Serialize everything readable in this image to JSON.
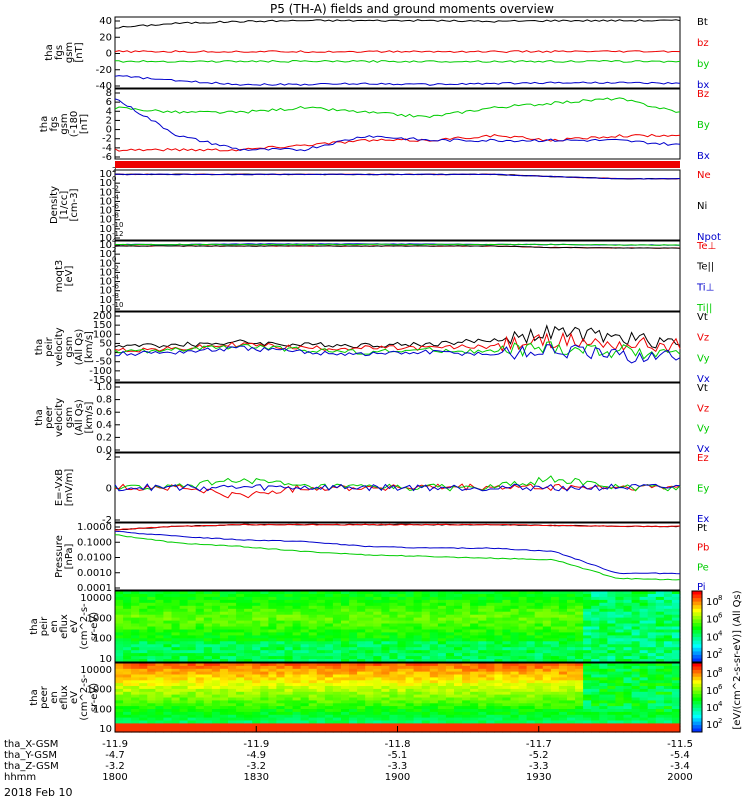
{
  "title": "P5 (TH-A) fields and ground moments overview",
  "date": "2018 Feb 10",
  "colors": {
    "black": "#000000",
    "red": "#ee0000",
    "green": "#00cc00",
    "blue": "#0000cc"
  },
  "chart_data": [
    {
      "type": "line",
      "ylabel": [
        "tha",
        "fgs",
        "gsm",
        "[nT]"
      ],
      "ticks": [
        "40",
        "20",
        "0",
        "-20",
        "-40"
      ],
      "ylim": [
        -40,
        40
      ],
      "series": [
        {
          "name": "Bt",
          "color": "black",
          "values": [
            28,
            33,
            35,
            36,
            36,
            36,
            35,
            36,
            36,
            36
          ]
        },
        {
          "name": "bz",
          "color": "red",
          "values": [
            1,
            1,
            1,
            1,
            1,
            1,
            1,
            1,
            1,
            1
          ]
        },
        {
          "name": "by",
          "color": "green",
          "values": [
            -10,
            -10,
            -10,
            -10,
            -10,
            -10,
            -10,
            -10,
            -10,
            -10
          ]
        },
        {
          "name": "bx",
          "color": "blue",
          "values": [
            -26,
            -32,
            -36,
            -36,
            -35,
            -36,
            -35,
            -34,
            -34,
            -35
          ]
        }
      ]
    },
    {
      "type": "line",
      "ylabel": [
        "tha",
        "fgs",
        "gsm",
        "(-180",
        "[nT]"
      ],
      "ticks": [
        "8",
        "6",
        "4",
        "2",
        "0",
        "-2",
        "-4",
        "-6"
      ],
      "ylim": [
        -7,
        8
      ],
      "series": [
        {
          "name": "Bz",
          "color": "red",
          "values": [
            -5,
            -5,
            -5,
            -4,
            -3,
            -3,
            -2,
            -3,
            -2,
            -2
          ]
        },
        {
          "name": "By",
          "color": "green",
          "values": [
            4,
            3,
            3,
            4,
            3,
            2,
            4,
            5,
            6,
            3
          ]
        },
        {
          "name": "Bx",
          "color": "blue",
          "values": [
            6,
            -2,
            -5,
            -5,
            -2,
            -3,
            -3,
            -3,
            -3,
            -4
          ]
        }
      ]
    },
    {
      "type": "line",
      "ylabel": [
        "Density",
        "[1/cc]",
        "[cm-3]"
      ],
      "ticks": [
        "10",
        "10",
        "10",
        "10",
        "10",
        "10",
        "10",
        "10"
      ],
      "ylim": [
        -14,
        2
      ],
      "series": [
        {
          "name": "Ne",
          "color": "red",
          "values": [
            1,
            1,
            1,
            1,
            1,
            1,
            1,
            0.5,
            0,
            0
          ]
        },
        {
          "name": "Ni",
          "color": "black",
          "values": [
            1,
            1,
            1,
            1,
            1,
            1,
            1,
            0.5,
            0,
            0
          ]
        },
        {
          "name": "Npot",
          "color": "blue",
          "values": [
            1,
            1,
            1,
            1,
            1,
            1,
            1,
            0.5,
            0,
            0
          ]
        }
      ]
    },
    {
      "type": "line",
      "ylabel": [
        "moqt3",
        "[eV]"
      ],
      "ticks": [
        "10",
        "10",
        "10",
        "10",
        "10",
        "10",
        "10",
        "10"
      ],
      "ylim": [
        -10,
        4
      ],
      "series": [
        {
          "name": "Te⊥",
          "color": "red",
          "values": [
            3,
            3,
            3,
            3,
            3,
            3,
            3,
            2.7,
            2.6,
            2.6
          ]
        },
        {
          "name": "Te||",
          "color": "black",
          "values": [
            3,
            3,
            3,
            3,
            3,
            3,
            3,
            2.7,
            2.6,
            2.6
          ]
        },
        {
          "name": "Ti⊥",
          "color": "blue",
          "values": [
            3.3,
            3.3,
            3.4,
            3.4,
            3.4,
            3.4,
            3.3,
            3.3,
            3.2,
            3.2
          ]
        },
        {
          "name": "Ti||",
          "color": "green",
          "values": [
            3.3,
            3.3,
            3.3,
            3.3,
            3.3,
            3.3,
            3.3,
            3.3,
            3.2,
            3.2
          ]
        }
      ]
    },
    {
      "type": "line",
      "ylabel": [
        "tha",
        "peir",
        "velocity",
        "gsm",
        "(All Qs)",
        "[km/s]"
      ],
      "ticks": [
        "200",
        "150",
        "100",
        "50",
        "0",
        "-50",
        "-100",
        "-150"
      ],
      "ylim": [
        -150,
        200
      ],
      "series": [
        {
          "name": "Vt",
          "color": "black",
          "values": [
            30,
            35,
            50,
            35,
            35,
            40,
            60,
            100,
            70,
            50
          ]
        },
        {
          "name": "Vz",
          "color": "red",
          "values": [
            10,
            15,
            40,
            20,
            20,
            20,
            30,
            60,
            40,
            30
          ]
        },
        {
          "name": "Vy",
          "color": "green",
          "values": [
            0,
            10,
            30,
            10,
            0,
            10,
            0,
            20,
            0,
            0
          ]
        },
        {
          "name": "Vx",
          "color": "blue",
          "values": [
            -10,
            0,
            20,
            0,
            -10,
            0,
            -10,
            10,
            -20,
            -20
          ]
        }
      ]
    },
    {
      "type": "line",
      "ylabel": [
        "tha",
        "peer",
        "velocity",
        "gsm",
        "(All Qs)",
        "[km/s]"
      ],
      "ticks": [
        "1.0",
        "0.8",
        "0.6",
        "0.4",
        "0.2",
        "0.0"
      ],
      "ylim": [
        0,
        1
      ],
      "series": [
        {
          "name": "Vt",
          "color": "black",
          "values": []
        },
        {
          "name": "Vz",
          "color": "red",
          "values": []
        },
        {
          "name": "Vy",
          "color": "green",
          "values": []
        },
        {
          "name": "Vx",
          "color": "blue",
          "values": []
        }
      ]
    },
    {
      "type": "line",
      "ylabel": [
        "E=-VxB",
        "[mV/m]"
      ],
      "ticks": [
        "2",
        "0",
        "-2"
      ],
      "ylim": [
        -4,
        4
      ],
      "series": [
        {
          "name": "Ez",
          "color": "red",
          "values": [
            0,
            0,
            -1,
            0,
            0,
            0,
            0,
            0,
            0,
            0
          ]
        },
        {
          "name": "Ey",
          "color": "green",
          "values": [
            0,
            0,
            1,
            0,
            0,
            0,
            0,
            1,
            0,
            0
          ]
        },
        {
          "name": "Ex",
          "color": "blue",
          "values": [
            0,
            0,
            0,
            0,
            0,
            0,
            0,
            0,
            0,
            0
          ]
        }
      ]
    },
    {
      "type": "line",
      "ylabel": [
        "Pressure",
        "[nPa]"
      ],
      "ticks": [
        "1.0000",
        "0.1000",
        "0.0100",
        "0.0010",
        "0.0001"
      ],
      "ylim": [
        -4,
        0
      ],
      "series": [
        {
          "name": "Pt",
          "color": "black",
          "values": [
            -0.4,
            -0.2,
            -0.1,
            -0.1,
            -0.1,
            -0.1,
            -0.1,
            -0.15,
            -0.2,
            -0.2
          ]
        },
        {
          "name": "Pb",
          "color": "red",
          "values": [
            -0.4,
            -0.2,
            -0.1,
            -0.1,
            -0.1,
            -0.1,
            -0.1,
            -0.15,
            -0.2,
            -0.2
          ]
        },
        {
          "name": "Pe",
          "color": "green",
          "values": [
            -0.7,
            -1.2,
            -1.4,
            -1.7,
            -1.9,
            -2.0,
            -2.1,
            -2.2,
            -3.3,
            -3.4
          ]
        },
        {
          "name": "Pi",
          "color": "blue",
          "values": [
            -0.5,
            -0.8,
            -1.0,
            -1.1,
            -1.4,
            -1.5,
            -1.5,
            -1.7,
            -3.0,
            -3.0
          ]
        }
      ]
    },
    {
      "type": "heatmap",
      "ylabel": [
        "tha",
        "peir",
        "en",
        "eflux",
        "eV",
        "(cm^2-s-",
        "sr-eV)"
      ],
      "ticks": [
        "10000",
        "1000",
        "100",
        "10"
      ],
      "colorbar_ticks": [
        "10",
        "10",
        "10",
        "10"
      ],
      "colorbar_exps": [
        "8",
        "6",
        "4",
        "2"
      ]
    },
    {
      "type": "heatmap",
      "ylabel": [
        "tha",
        "peer",
        "en",
        "eflux",
        "eV",
        "(cm^2-s-",
        "sr-eV)"
      ],
      "ticks": [
        "10000",
        "1000",
        "100",
        "10"
      ],
      "colorbar_ticks": [
        "10",
        "10",
        "10",
        "10"
      ],
      "colorbar_exps": [
        "8",
        "6",
        "4",
        "2"
      ]
    }
  ],
  "colorbar_label": "[eV/(cm^2-s-sr-eV)] (All Qs)",
  "log_exponents": {
    "density": [
      "2",
      "0",
      "-2",
      "-4",
      "-6",
      "-8",
      "-10",
      "-12"
    ],
    "temp": [
      "4",
      "2",
      "0",
      "-2",
      "-4",
      "-6",
      "-8",
      "-10"
    ]
  },
  "xaxis": {
    "row_labels": [
      "tha_X-GSM",
      "tha_Y-GSM",
      "tha_Z-GSM",
      "hhmm"
    ],
    "columns": [
      {
        "x": "-11.9",
        "y": "-4.7",
        "z": "-3.2",
        "t": "1800"
      },
      {
        "x": "-11.9",
        "y": "-4.9",
        "z": "-3.2",
        "t": "1830"
      },
      {
        "x": "-11.8",
        "y": "-5.1",
        "z": "-3.3",
        "t": "1900"
      },
      {
        "x": "-11.7",
        "y": "-5.2",
        "z": "-3.3",
        "t": "1930"
      },
      {
        "x": "-11.5",
        "y": "-5.4",
        "z": "-3.4",
        "t": "2000"
      }
    ]
  }
}
